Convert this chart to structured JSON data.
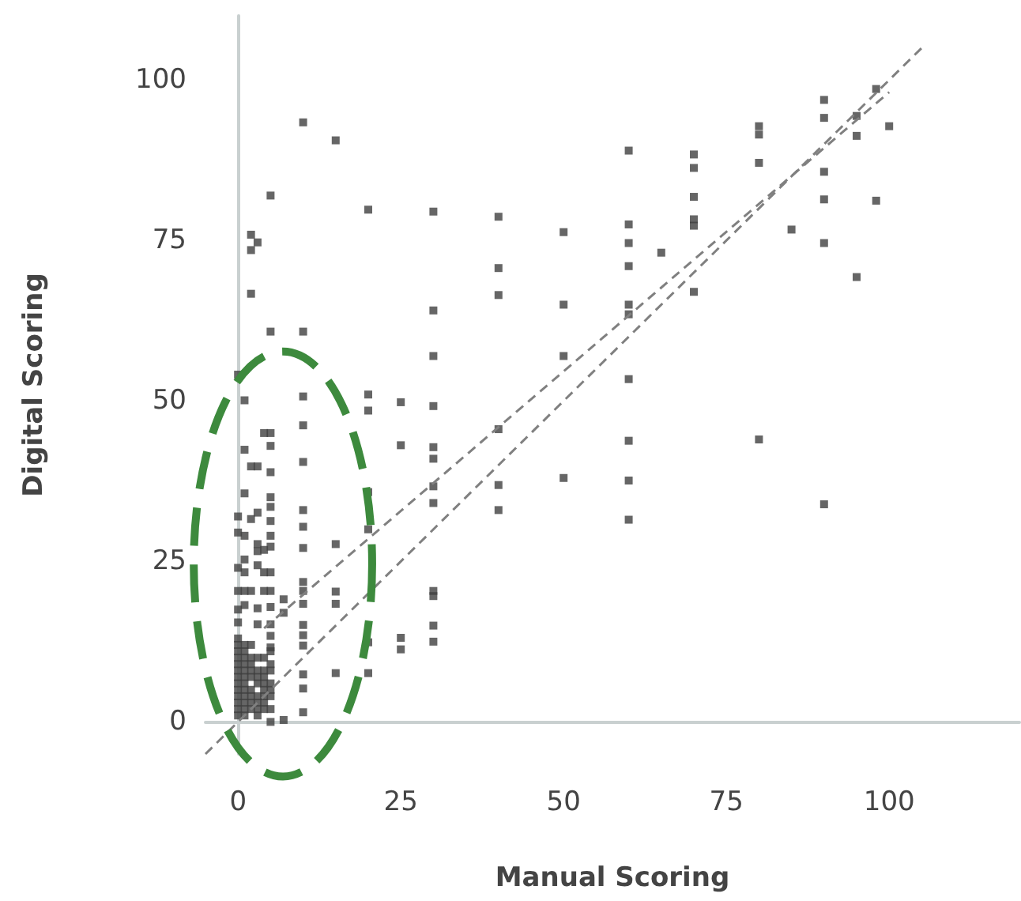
{
  "chart_data": {
    "type": "scatter",
    "xlabel": "Manual Scoring",
    "ylabel": "Digital Scoring",
    "xlim": [
      -5,
      120
    ],
    "ylim": [
      -5,
      110
    ],
    "xticks": [
      0,
      25,
      50,
      75,
      100
    ],
    "yticks": [
      0,
      25,
      50,
      75,
      100
    ],
    "grid": false,
    "series": [
      {
        "color": "#404040",
        "marker": "square",
        "x": [
          10,
          15,
          5,
          20,
          30,
          40,
          2,
          3,
          2,
          2,
          30,
          40,
          40,
          5,
          10,
          25,
          25,
          30,
          30,
          30,
          30,
          30,
          30,
          30,
          30,
          30,
          30,
          25,
          25,
          40,
          40,
          40,
          50,
          50,
          50,
          50,
          60,
          60,
          60,
          60,
          60,
          60,
          60,
          60,
          60,
          60,
          65,
          70,
          70,
          70,
          70,
          70,
          70,
          80,
          80,
          80,
          80,
          85,
          90,
          90,
          90,
          90,
          90,
          90,
          95,
          95,
          95,
          98,
          98,
          100,
          10,
          10,
          10,
          10,
          10,
          10,
          10,
          10,
          10,
          10,
          10,
          10,
          10,
          10,
          10,
          15,
          15,
          15,
          15,
          20,
          20,
          20,
          20,
          20,
          20,
          7,
          7,
          7,
          0,
          1,
          4,
          5,
          5,
          1,
          2,
          3,
          5,
          1,
          5,
          5,
          0,
          3,
          2,
          5,
          0,
          1,
          5,
          3,
          3,
          4,
          5,
          1,
          0,
          1,
          3,
          4,
          5,
          0,
          1,
          2,
          4,
          5,
          3,
          5,
          0,
          3,
          5,
          5,
          5,
          0,
          1,
          0,
          0,
          0,
          0,
          0,
          0,
          0,
          0,
          0,
          0,
          0,
          0,
          0,
          1,
          1,
          1,
          1,
          1,
          1,
          1,
          1,
          1,
          1,
          1,
          1,
          2,
          2,
          2,
          2,
          2,
          2,
          2,
          2,
          2,
          3,
          3,
          3,
          3,
          3,
          3,
          3,
          3,
          4,
          4,
          4,
          4,
          4,
          4,
          4,
          4,
          5,
          5,
          5,
          5,
          5,
          5,
          5,
          5
        ],
        "values": [
          93.4,
          90.6,
          82,
          79.8,
          79.5,
          78.7,
          75.9,
          74.7,
          73.5,
          66.7,
          64.1,
          70.7,
          66.5,
          60.8,
          60.8,
          49.8,
          43.1,
          57,
          49.2,
          42.8,
          41,
          36.7,
          34.1,
          20.4,
          19.6,
          15,
          12.5,
          13.1,
          11.3,
          45.6,
          36.9,
          33,
          76.3,
          65,
          57,
          38,
          89,
          77.5,
          74.6,
          71,
          65,
          63.5,
          53.4,
          43.8,
          37.6,
          31.5,
          73.1,
          88.4,
          86.3,
          81.8,
          78.3,
          77.3,
          67,
          92.8,
          91.5,
          87.1,
          44,
          76.7,
          96.9,
          94.1,
          85.7,
          81.4,
          74.6,
          33.9,
          94.4,
          91.3,
          69.3,
          98.6,
          81.2,
          92.8,
          50.7,
          46.2,
          40.5,
          33,
          30.4,
          27.1,
          21.8,
          20.4,
          18.4,
          15.1,
          13.5,
          11.9,
          7.4,
          5.2,
          1.5,
          27.7,
          20.3,
          18.4,
          7.6,
          51,
          48.5,
          35.8,
          30,
          12.4,
          7.6,
          19.1,
          17,
          0.3,
          54.1,
          50.1,
          45,
          45,
          43,
          42.4,
          39.8,
          39.8,
          38.9,
          35.6,
          35,
          33.5,
          32,
          32.6,
          31.6,
          31.3,
          29.5,
          29,
          29,
          27.7,
          26.6,
          26.8,
          27.3,
          25.3,
          24,
          23.3,
          24.4,
          23.3,
          23.3,
          20.4,
          20.4,
          20.4,
          20.4,
          20.4,
          17.7,
          17.9,
          15.5,
          15.2,
          15.2,
          13.4,
          11.6,
          17.5,
          18.2,
          1,
          2,
          3,
          4,
          5,
          6,
          7,
          8,
          9,
          10,
          11,
          12,
          13,
          1,
          2,
          3,
          4,
          5,
          6,
          7,
          8,
          9,
          10,
          11,
          12,
          2,
          3,
          4,
          5,
          7,
          8,
          9,
          10,
          12,
          1,
          2,
          3,
          4,
          6,
          7,
          8,
          10,
          2,
          3,
          4,
          5,
          6,
          7,
          8,
          10,
          0,
          2,
          4,
          5,
          6,
          8,
          9,
          11
        ]
      },
      {
        "type": "line",
        "color": "#808080",
        "line_style": "dashed",
        "marker": "none",
        "x": [
          -5,
          105
        ],
        "values": [
          -5,
          105
        ]
      },
      {
        "type": "line",
        "color": "#808080",
        "line_style": "dashed",
        "marker": "none",
        "x": [
          4,
          100
        ],
        "values": [
          14.6,
          98.1
        ]
      }
    ]
  }
}
